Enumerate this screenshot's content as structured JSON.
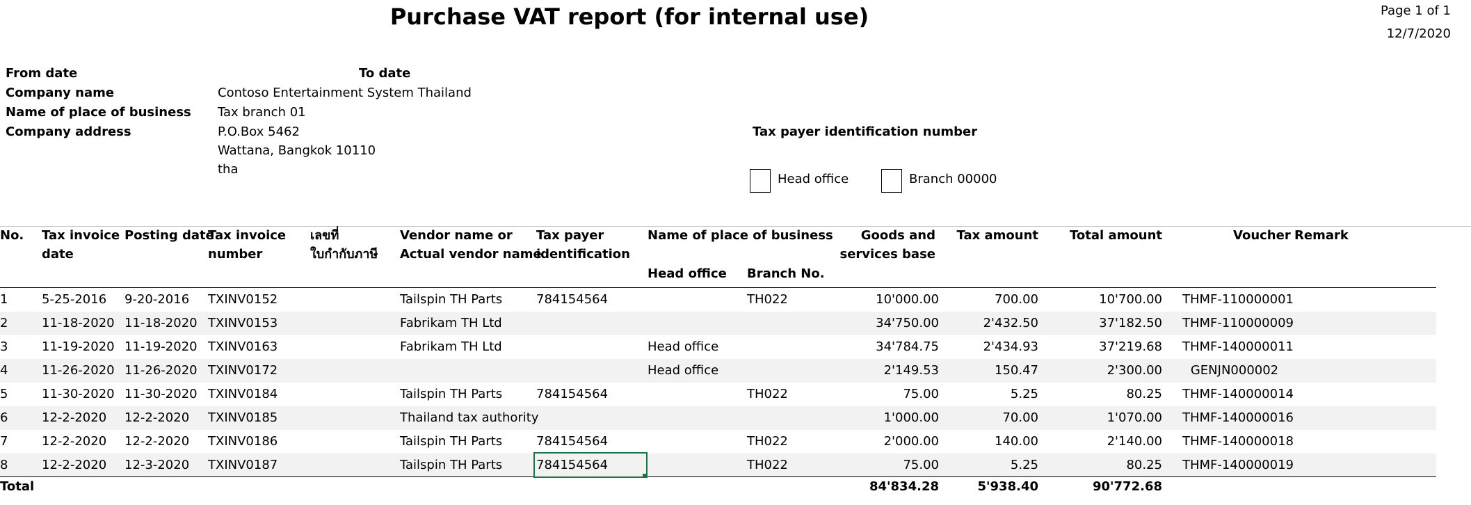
{
  "report": {
    "title": "Purchase VAT report (for internal use)",
    "page": "Page 1 of 1",
    "date": "12/7/2020"
  },
  "header": {
    "from_date_label": "From date",
    "to_date_label": "To date",
    "company_name_label": "Company name",
    "company_name": "Contoso Entertainment System Thailand",
    "place_label": "Name of place of business",
    "place": "Tax branch 01",
    "address_label": "Company address",
    "address_line1": "P.O.Box 5462",
    "address_line2": "Wattana, Bangkok 10110",
    "address_line3": "tha",
    "tax_id_label": "Tax payer identification number",
    "head_office_label": "Head office",
    "branch_label": "Branch 00000"
  },
  "columns": {
    "no": "No.",
    "tax_invoice_date": [
      "Tax invoice",
      "date"
    ],
    "posting_date": "Posting date",
    "tax_invoice_number": [
      "Tax invoice",
      "number"
    ],
    "thai": [
      "เลขที่",
      "ใบกำกับภาษี"
    ],
    "vendor": [
      "Vendor name or",
      "Actual vendor name"
    ],
    "tax_payer": [
      "Tax payer",
      "identification"
    ],
    "place": "Name of place of business",
    "head_office": "Head office",
    "branch_no": "Branch No.",
    "goods": [
      "Goods and",
      "services base"
    ],
    "tax_amount": "Tax amount",
    "total_amount": "Total amount",
    "voucher": "Voucher",
    "remark": "Remark"
  },
  "rows": [
    {
      "no": "1",
      "inv_date": "5-25-2016",
      "post_date": "9-20-2016",
      "inv_no": "TXINV0152",
      "vendor": "Tailspin TH Parts",
      "tax_id": "784154564",
      "head": "",
      "branch": "TH022",
      "goods": "10'000.00",
      "tax": "700.00",
      "total": "10'700.00",
      "voucher": "THMF-110000001"
    },
    {
      "no": "2",
      "inv_date": "11-18-2020",
      "post_date": "11-18-2020",
      "inv_no": "TXINV0153",
      "vendor": "Fabrikam TH Ltd",
      "tax_id": "",
      "head": "",
      "branch": "",
      "goods": "34'750.00",
      "tax": "2'432.50",
      "total": "37'182.50",
      "voucher": "THMF-110000009"
    },
    {
      "no": "3",
      "inv_date": "11-19-2020",
      "post_date": "11-19-2020",
      "inv_no": "TXINV0163",
      "vendor": "Fabrikam TH Ltd",
      "tax_id": "",
      "head": "Head office",
      "branch": "",
      "goods": "34'784.75",
      "tax": "2'434.93",
      "total": "37'219.68",
      "voucher": "THMF-140000011"
    },
    {
      "no": "4",
      "inv_date": "11-26-2020",
      "post_date": "11-26-2020",
      "inv_no": "TXINV0172",
      "vendor": "",
      "tax_id": "",
      "head": "Head office",
      "branch": "",
      "goods": "2'149.53",
      "tax": "150.47",
      "total": "2'300.00",
      "voucher": "GENJN000002"
    },
    {
      "no": "5",
      "inv_date": "11-30-2020",
      "post_date": "11-30-2020",
      "inv_no": "TXINV0184",
      "vendor": "Tailspin TH Parts",
      "tax_id": "784154564",
      "head": "",
      "branch": "TH022",
      "goods": "75.00",
      "tax": "5.25",
      "total": "80.25",
      "voucher": "THMF-140000014"
    },
    {
      "no": "6",
      "inv_date": "12-2-2020",
      "post_date": "12-2-2020",
      "inv_no": "TXINV0185",
      "vendor": "Thailand tax authority",
      "tax_id": "",
      "head": "",
      "branch": "",
      "goods": "1'000.00",
      "tax": "70.00",
      "total": "1'070.00",
      "voucher": "THMF-140000016"
    },
    {
      "no": "7",
      "inv_date": "12-2-2020",
      "post_date": "12-2-2020",
      "inv_no": "TXINV0186",
      "vendor": "Tailspin TH Parts",
      "tax_id": "784154564",
      "head": "",
      "branch": "TH022",
      "goods": "2'000.00",
      "tax": "140.00",
      "total": "2'140.00",
      "voucher": "THMF-140000018"
    },
    {
      "no": "8",
      "inv_date": "12-2-2020",
      "post_date": "12-3-2020",
      "inv_no": "TXINV0187",
      "vendor": "Tailspin TH Parts",
      "tax_id": "784154564",
      "head": "",
      "branch": "TH022",
      "goods": "75.00",
      "tax": "5.25",
      "total": "80.25",
      "voucher": "THMF-140000019"
    }
  ],
  "totals": {
    "label": "Total",
    "goods": "84'834.28",
    "tax": "5'938.40",
    "total": "90'772.68"
  },
  "colors": {
    "stripe": "#f2f2f2",
    "selection": "#217346",
    "rule": "#000000"
  }
}
